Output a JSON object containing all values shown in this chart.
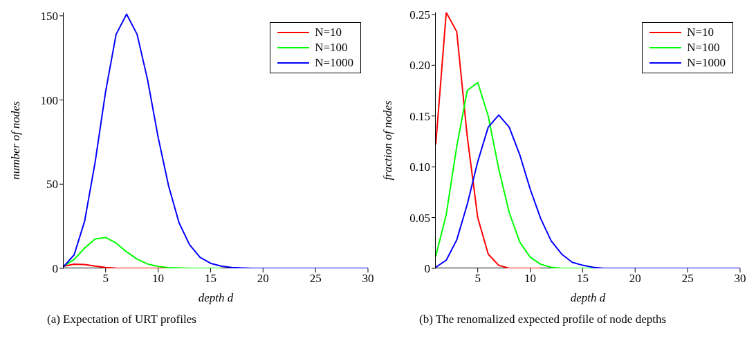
{
  "chart_data": [
    {
      "type": "line",
      "title": "(a) Expectation of URT profiles",
      "xlabel": "depth d",
      "ylabel": "number of nodes",
      "x": [
        1,
        2,
        3,
        4,
        5,
        6,
        7,
        8,
        9,
        10,
        11,
        12,
        13,
        14,
        15,
        16,
        17,
        18,
        19,
        20,
        21,
        22,
        23,
        24,
        25,
        26,
        27,
        28,
        29,
        30
      ],
      "series": [
        {
          "name": "N=10",
          "color": "#ff0000",
          "values": [
            1.2,
            2.5,
            2.3,
            1.3,
            0.5,
            0.1,
            0,
            0,
            0,
            0,
            0,
            null,
            null,
            null,
            null,
            null,
            null,
            null,
            null,
            null,
            null,
            null,
            null,
            null,
            null,
            null,
            null,
            null,
            null,
            null
          ]
        },
        {
          "name": "N=100",
          "color": "#00ff00",
          "values": [
            1.2,
            5.3,
            12,
            17.5,
            18.3,
            15,
            9.8,
            5.5,
            2.6,
            1.1,
            0.4,
            0.2,
            0,
            0,
            0,
            0,
            null,
            null,
            null,
            null,
            null,
            null,
            null,
            null,
            null,
            null,
            null,
            null,
            null,
            null
          ]
        },
        {
          "name": "N=1000",
          "color": "#0000ff",
          "values": [
            1,
            8,
            28,
            63,
            105,
            139,
            151,
            139,
            112,
            78,
            49,
            27,
            14,
            6.5,
            3,
            1.3,
            0.5,
            0.2,
            0,
            0,
            0,
            0,
            0,
            0,
            0,
            0,
            0,
            0,
            0,
            0
          ]
        }
      ],
      "xlim": [
        1,
        30
      ],
      "xticks": [
        5,
        10,
        15,
        20,
        25,
        30
      ],
      "ylim": [
        0,
        152
      ],
      "yticks": [
        0,
        50,
        100,
        150
      ],
      "grid": false,
      "legend": "top right",
      "marker": "none",
      "line_style": "solid"
    },
    {
      "type": "line",
      "title": "(b) The renomalized expected profile of node depths",
      "xlabel": "depth d",
      "ylabel": "fraction of nodes",
      "x": [
        1,
        2,
        3,
        4,
        5,
        6,
        7,
        8,
        9,
        10,
        11,
        12,
        13,
        14,
        15,
        16,
        17,
        18,
        19,
        20,
        21,
        22,
        23,
        24,
        25,
        26,
        27,
        28,
        29,
        30
      ],
      "series": [
        {
          "name": "N=10",
          "color": "#ff0000",
          "values": [
            0.122,
            0.252,
            0.233,
            0.13,
            0.05,
            0.014,
            0.003,
            0,
            0,
            0,
            0,
            null,
            null,
            null,
            null,
            null,
            null,
            null,
            null,
            null,
            null,
            null,
            null,
            null,
            null,
            null,
            null,
            null,
            null,
            null
          ]
        },
        {
          "name": "N=100",
          "color": "#00ff00",
          "values": [
            0.012,
            0.053,
            0.12,
            0.175,
            0.183,
            0.15,
            0.098,
            0.055,
            0.026,
            0.011,
            0.004,
            0.001,
            0,
            0,
            0,
            0,
            null,
            null,
            null,
            null,
            null,
            null,
            null,
            null,
            null,
            null,
            null,
            null,
            null,
            null
          ]
        },
        {
          "name": "N=1000",
          "color": "#0000ff",
          "values": [
            0.001,
            0.008,
            0.028,
            0.063,
            0.105,
            0.139,
            0.151,
            0.139,
            0.112,
            0.078,
            0.049,
            0.027,
            0.014,
            0.006,
            0.003,
            0.001,
            0,
            0,
            0,
            0,
            0,
            0,
            0,
            0,
            0,
            0,
            0,
            0,
            0,
            0
          ]
        }
      ],
      "xlim": [
        1,
        30
      ],
      "xticks": [
        5,
        10,
        15,
        20,
        25,
        30
      ],
      "ylim": [
        0,
        0.252
      ],
      "yticks": [
        0,
        {
          "value": 0.05,
          "label": "0.05"
        },
        {
          "value": 0.1,
          "label": "0.10"
        },
        {
          "value": 0.15,
          "label": "0.15"
        },
        {
          "value": 0.2,
          "label": "0.20"
        },
        {
          "value": 0.25,
          "label": "0.25"
        }
      ],
      "grid": false,
      "legend": "top right",
      "marker": "none",
      "line_style": "solid"
    }
  ]
}
